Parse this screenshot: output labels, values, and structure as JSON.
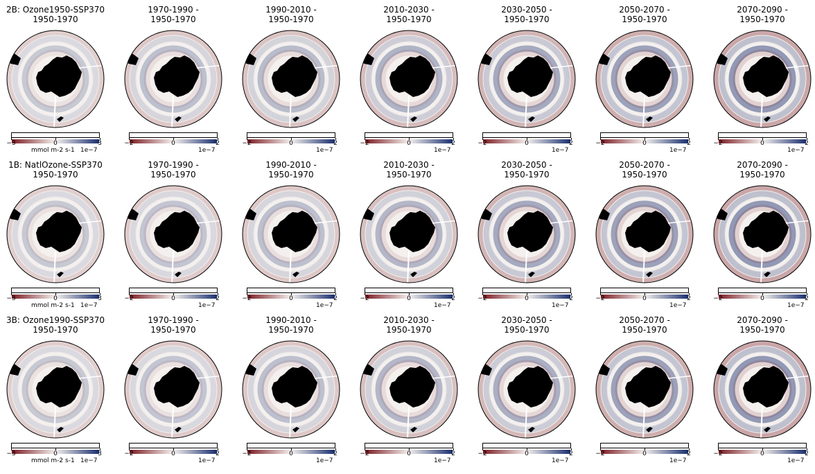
{
  "rows": [
    {
      "label": "2B: Ozone1950-SSP370",
      "reference": "1950-1970",
      "first_colorbar": {
        "ticks": [
          "−3",
          "0",
          "3"
        ],
        "unit": "mmol m-2 s-1",
        "exponent": "1e−7"
      },
      "other_colorbar": {
        "ticks": [
          "−2",
          "0",
          "2"
        ],
        "exponent": "1e−7"
      },
      "intensity": [
        0.45,
        0.55,
        0.6,
        0.7,
        0.8,
        0.9,
        1.0
      ]
    },
    {
      "label": "1B: NatlOzone-SSP370",
      "reference": "1950-1970",
      "first_colorbar": {
        "ticks": [
          "−3",
          "0",
          "3"
        ],
        "unit": "mmol m-2 s-1",
        "exponent": "1e−7"
      },
      "other_colorbar": {
        "ticks": [
          "−2",
          "0",
          "2"
        ],
        "exponent": "1e−7"
      },
      "intensity": [
        0.45,
        0.5,
        0.55,
        0.65,
        0.8,
        0.9,
        1.0
      ]
    },
    {
      "label": "3B: Ozone1990-SSP370",
      "reference": "1950-1970",
      "first_colorbar": {
        "ticks": [
          "−3",
          "0",
          "3"
        ],
        "unit": "mmol m-2 s-1",
        "exponent": "1e−7"
      },
      "other_colorbar": {
        "ticks": [
          "−2",
          "0",
          "2"
        ],
        "exponent": "1e−7"
      },
      "intensity": [
        0.45,
        0.5,
        0.55,
        0.65,
        0.75,
        0.9,
        1.0
      ]
    }
  ],
  "periods": [
    "1970-1990 -",
    "1990-2010 -",
    "2010-2030 -",
    "2030-2050 -",
    "2050-2070 -",
    "2070-2090 -"
  ],
  "top_clipped": {
    "unit": "mmol m-2 s-1",
    "exponent": "1e−7"
  },
  "colors": {
    "negative": "#7b1d24",
    "neutral": "#f4f0ee",
    "positive": "#1a2f6e",
    "land": "#000000"
  }
}
